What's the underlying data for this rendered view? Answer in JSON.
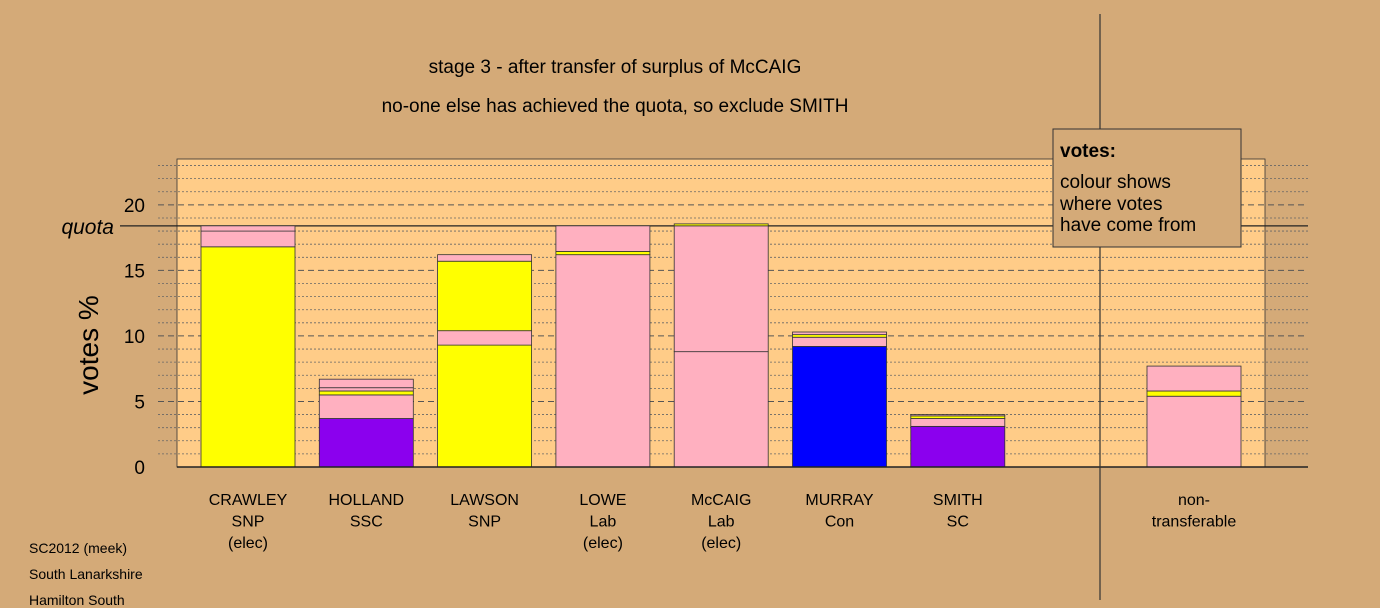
{
  "chart_data": {
    "type": "bar",
    "stacked": true,
    "title": "stage 3 - after transfer of surplus of McCAIG",
    "subtitle": "no-one else has achieved the quota, so exclude SMITH",
    "ylabel": "votes %",
    "ylim": [
      0,
      23.5
    ],
    "yticks": [
      "0",
      "5",
      "10",
      "15",
      "20"
    ],
    "quota": 18.4,
    "quota_label": "quota",
    "categories": [
      {
        "name": "CRAWLEY",
        "party": "SNP",
        "note": "(elec)"
      },
      {
        "name": "HOLLAND",
        "party": "SSC",
        "note": ""
      },
      {
        "name": "LAWSON",
        "party": "SNP",
        "note": ""
      },
      {
        "name": "LOWE",
        "party": "Lab",
        "note": "(elec)"
      },
      {
        "name": "McCAIG",
        "party": "Lab",
        "note": "(elec)"
      },
      {
        "name": "MURRAY",
        "party": "Con",
        "note": ""
      },
      {
        "name": "SMITH",
        "party": "SC",
        "note": ""
      }
    ],
    "nontransferable_label": [
      "non-",
      "transferable"
    ],
    "stacks": [
      [
        {
          "value": 16.8,
          "color": "#ffff00"
        },
        {
          "value": 1.2,
          "color": "#ffb0c0"
        },
        {
          "value": 0.4,
          "color": "#ffb0c0"
        }
      ],
      [
        {
          "value": 3.7,
          "color": "#8b00ee"
        },
        {
          "value": 1.8,
          "color": "#ffb0c0"
        },
        {
          "value": 0.3,
          "color": "#ffff00"
        },
        {
          "value": 0.25,
          "color": "#ffb0c0"
        },
        {
          "value": 0.65,
          "color": "#ffb0c0"
        }
      ],
      [
        {
          "value": 9.3,
          "color": "#ffff00"
        },
        {
          "value": 1.1,
          "color": "#ffb0c0"
        },
        {
          "value": 5.3,
          "color": "#ffff00"
        },
        {
          "value": 0.5,
          "color": "#ffb0c0"
        }
      ],
      [
        {
          "value": 16.2,
          "color": "#ffb0c0"
        },
        {
          "value": 0.25,
          "color": "#ffff00"
        },
        {
          "value": 1.95,
          "color": "#ffb0c0"
        }
      ],
      [
        {
          "value": 8.8,
          "color": "#ffb0c0"
        },
        {
          "value": 9.6,
          "color": "#ffb0c0"
        },
        {
          "value": 0.15,
          "color": "#ffff00"
        }
      ],
      [
        {
          "value": 9.2,
          "color": "#0000ff"
        },
        {
          "value": 0.7,
          "color": "#ffb0c0"
        },
        {
          "value": 0.2,
          "color": "#ffff00"
        },
        {
          "value": 0.2,
          "color": "#ffb0c0"
        }
      ],
      [
        {
          "value": 3.1,
          "color": "#8b00ee"
        },
        {
          "value": 0.6,
          "color": "#ffb0c0"
        },
        {
          "value": 0.2,
          "color": "#ffff00"
        },
        {
          "value": 0.1,
          "color": "#ffb0c0"
        }
      ]
    ],
    "nontransferable": [
      {
        "value": 5.4,
        "color": "#ffb0c0"
      },
      {
        "value": 0.4,
        "color": "#ffff00"
      },
      {
        "value": 1.9,
        "color": "#ffb0c0"
      }
    ],
    "legend": {
      "title": "votes:",
      "lines": [
        "colour shows",
        "where votes",
        "have come from"
      ]
    }
  },
  "footer": [
    "SC2012 (meek)",
    "South Lanarkshire",
    "Hamilton South"
  ]
}
